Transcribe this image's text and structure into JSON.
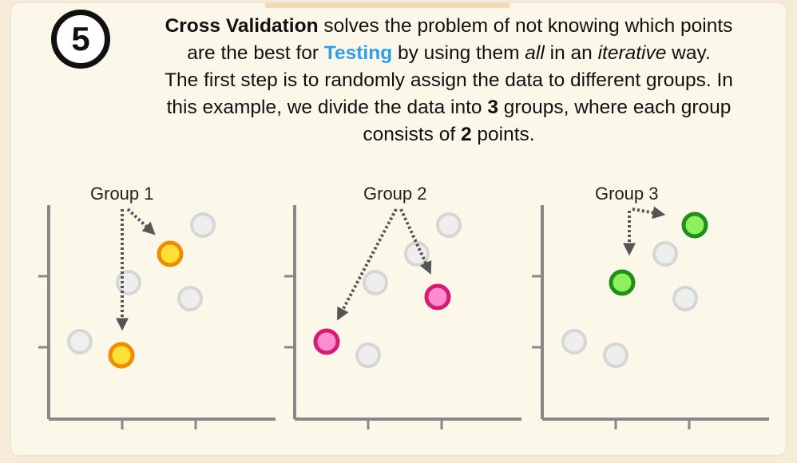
{
  "step": "5",
  "description": {
    "line1": {
      "bold": "Cross Validation",
      "rest": " solves the problem of not knowing which points"
    },
    "line2": {
      "a": "are the best for ",
      "testing": "Testing",
      "b": " by using them ",
      "all": "all",
      "c": " in an ",
      "iterative": "iterative",
      "d": " way."
    },
    "line3": "The first step is to randomly assign the data to different groups. In",
    "line4": {
      "a": "this example, we divide the data into ",
      "three": "3",
      "b": " groups, where each group"
    },
    "line5": {
      "a": "consists of ",
      "two": "2",
      "b": " points."
    }
  },
  "colors": {
    "axis": "#888888",
    "gray_point_fill": "#eeeeee",
    "gray_point_stroke": "#d6d6d6",
    "arrow": "#555555"
  },
  "panels": [
    {
      "label": "Group 1",
      "highlight_fill": "#ffe135",
      "highlight_stroke": "#ef8c00"
    },
    {
      "label": "Group 2",
      "highlight_fill": "#ff8ccf",
      "highlight_stroke": "#d81b72"
    },
    {
      "label": "Group 3",
      "highlight_fill": "#8ef05a",
      "highlight_stroke": "#1e8f17"
    }
  ]
}
